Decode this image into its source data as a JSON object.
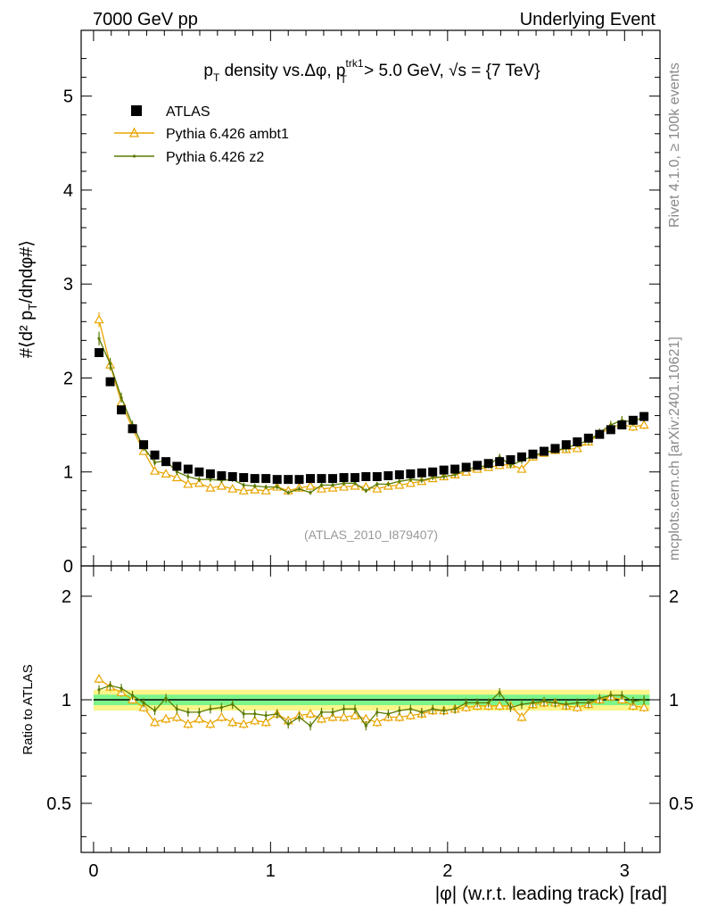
{
  "header": {
    "left": "7000 GeV pp",
    "right": "Underlying Event"
  },
  "side": {
    "rivet": "Rivet 4.1.0, ≥ 100k events",
    "mcplots": "mcplots.cern.ch [arXiv:2401.10621]"
  },
  "chart_data": {
    "type": "scatter",
    "title": "pT density vs.Δφ, pT trk1 > 5.0 GeV, √s = {7 TeV}",
    "analysis_label": "(ATLAS_2010_I879407)",
    "xlabel": "|φ| (w.r.t. leading track) [rad]",
    "ylabel": "#⟨d² pT/dηdφ#⟩",
    "ratio_ylabel": "Ratio to ATLAS",
    "xlim": [
      -0.07,
      3.2
    ],
    "ylim": [
      0,
      5.7
    ],
    "ratio_ylim": [
      0.36,
      2.45
    ],
    "x_ticks": [
      "0",
      "1",
      "2",
      "3"
    ],
    "y_ticks": [
      "0",
      "1",
      "2",
      "3",
      "4",
      "5"
    ],
    "ratio_ticks": [
      "0.5",
      "1",
      "2"
    ],
    "legend": [
      "ATLAS",
      "Pythia 6.426 ambt1",
      "Pythia 6.426 z2"
    ],
    "colors": {
      "data": "#000000",
      "ambt1": "#e8a500",
      "z2": "#5a7a00",
      "band_inner": "#7cf58a",
      "band_outer": "#fbf58a"
    },
    "x": [
      0.031,
      0.094,
      0.157,
      0.22,
      0.283,
      0.346,
      0.409,
      0.471,
      0.534,
      0.597,
      0.66,
      0.723,
      0.785,
      0.848,
      0.911,
      0.974,
      1.037,
      1.1,
      1.162,
      1.225,
      1.288,
      1.351,
      1.414,
      1.477,
      1.539,
      1.602,
      1.665,
      1.728,
      1.791,
      1.854,
      1.916,
      1.979,
      2.042,
      2.105,
      2.168,
      2.231,
      2.294,
      2.356,
      2.419,
      2.482,
      2.545,
      2.608,
      2.67,
      2.733,
      2.796,
      2.859,
      2.922,
      2.985,
      3.048,
      3.11
    ],
    "series": [
      {
        "name": "ATLAS",
        "values": [
          2.27,
          1.96,
          1.66,
          1.46,
          1.29,
          1.18,
          1.11,
          1.06,
          1.03,
          1.0,
          0.98,
          0.96,
          0.95,
          0.94,
          0.93,
          0.93,
          0.92,
          0.92,
          0.92,
          0.93,
          0.93,
          0.93,
          0.94,
          0.94,
          0.95,
          0.95,
          0.96,
          0.97,
          0.98,
          0.99,
          1.0,
          1.02,
          1.03,
          1.05,
          1.07,
          1.09,
          1.11,
          1.13,
          1.16,
          1.19,
          1.22,
          1.25,
          1.29,
          1.32,
          1.36,
          1.4,
          1.45,
          1.5,
          1.55,
          1.59
        ]
      },
      {
        "name": "Pythia 6.426 ambt1",
        "values": [
          2.62,
          2.14,
          1.74,
          1.46,
          1.22,
          1.01,
          0.98,
          0.94,
          0.87,
          0.88,
          0.83,
          0.85,
          0.82,
          0.8,
          0.81,
          0.8,
          0.84,
          0.8,
          0.83,
          0.85,
          0.82,
          0.83,
          0.84,
          0.85,
          0.84,
          0.82,
          0.85,
          0.86,
          0.88,
          0.9,
          0.93,
          0.95,
          0.97,
          1.0,
          1.03,
          1.05,
          1.07,
          1.08,
          1.03,
          1.16,
          1.2,
          1.23,
          1.24,
          1.25,
          1.32,
          1.4,
          1.48,
          1.5,
          1.48,
          1.5
        ]
      },
      {
        "name": "Pythia 6.426 z2",
        "values": [
          2.42,
          2.15,
          1.79,
          1.5,
          1.26,
          1.1,
          1.12,
          1.0,
          0.95,
          0.92,
          0.92,
          0.91,
          0.92,
          0.86,
          0.85,
          0.84,
          0.84,
          0.78,
          0.82,
          0.78,
          0.86,
          0.86,
          0.88,
          0.88,
          0.8,
          0.87,
          0.87,
          0.9,
          0.92,
          0.91,
          0.94,
          0.95,
          0.97,
          1.03,
          1.05,
          1.07,
          1.16,
          1.07,
          1.12,
          1.17,
          1.21,
          1.23,
          1.25,
          1.3,
          1.33,
          1.42,
          1.5,
          1.55,
          1.53,
          1.59
        ]
      }
    ],
    "ratio_series": [
      {
        "name": "Pythia 6.426 ambt1",
        "values": [
          1.15,
          1.09,
          1.05,
          1.0,
          0.95,
          0.86,
          0.88,
          0.89,
          0.85,
          0.88,
          0.85,
          0.89,
          0.86,
          0.85,
          0.87,
          0.86,
          0.91,
          0.87,
          0.9,
          0.91,
          0.88,
          0.89,
          0.89,
          0.9,
          0.88,
          0.86,
          0.89,
          0.89,
          0.9,
          0.91,
          0.93,
          0.93,
          0.94,
          0.95,
          0.96,
          0.96,
          0.96,
          0.96,
          0.89,
          0.97,
          0.98,
          0.98,
          0.96,
          0.95,
          0.97,
          1.0,
          1.02,
          1.0,
          0.96,
          0.95
        ]
      },
      {
        "name": "Pythia 6.426 z2",
        "values": [
          1.07,
          1.1,
          1.08,
          1.03,
          0.98,
          0.93,
          1.01,
          0.94,
          0.92,
          0.92,
          0.94,
          0.95,
          0.97,
          0.91,
          0.91,
          0.9,
          0.91,
          0.85,
          0.89,
          0.84,
          0.92,
          0.92,
          0.94,
          0.94,
          0.84,
          0.92,
          0.91,
          0.93,
          0.94,
          0.92,
          0.94,
          0.93,
          0.94,
          0.98,
          0.98,
          0.98,
          1.05,
          0.95,
          0.97,
          0.98,
          0.99,
          0.98,
          0.97,
          0.98,
          0.98,
          1.01,
          1.03,
          1.03,
          0.99,
          1.0
        ]
      }
    ],
    "data_uncertainty_inner": [
      0.035,
      0.035,
      0.035,
      0.035,
      0.035,
      0.035,
      0.035,
      0.035,
      0.035,
      0.035,
      0.035,
      0.035,
      0.035,
      0.035,
      0.035,
      0.035,
      0.035,
      0.035,
      0.035,
      0.035,
      0.035,
      0.035,
      0.035,
      0.035,
      0.035,
      0.035,
      0.035,
      0.035,
      0.035,
      0.035,
      0.035,
      0.035,
      0.035,
      0.035,
      0.035,
      0.035,
      0.035,
      0.035,
      0.035,
      0.035,
      0.035,
      0.035,
      0.035,
      0.035,
      0.035,
      0.035,
      0.035,
      0.035,
      0.035,
      0.035
    ],
    "data_uncertainty_outer": [
      0.07,
      0.07,
      0.07,
      0.07,
      0.07,
      0.07,
      0.07,
      0.07,
      0.07,
      0.07,
      0.07,
      0.07,
      0.07,
      0.07,
      0.07,
      0.07,
      0.07,
      0.07,
      0.07,
      0.07,
      0.07,
      0.07,
      0.07,
      0.07,
      0.07,
      0.07,
      0.07,
      0.07,
      0.07,
      0.07,
      0.07,
      0.07,
      0.07,
      0.07,
      0.07,
      0.07,
      0.07,
      0.07,
      0.07,
      0.07,
      0.07,
      0.07,
      0.07,
      0.07,
      0.07,
      0.07,
      0.07,
      0.07,
      0.07,
      0.07
    ],
    "mc_rel_error": 0.03
  }
}
